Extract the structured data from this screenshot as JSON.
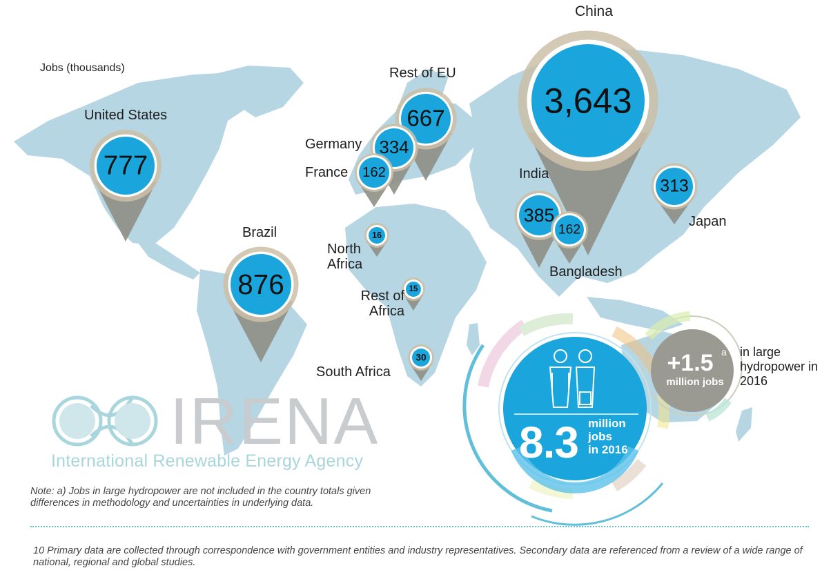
{
  "units_label": "Jobs (thousands)",
  "countries": [
    {
      "name": "China",
      "jobs": "3,643",
      "value": 3643
    },
    {
      "name": "Brazil",
      "jobs": "876",
      "value": 876
    },
    {
      "name": "United States",
      "jobs": "777",
      "value": 777
    },
    {
      "name": "Rest of EU",
      "jobs": "667",
      "value": 667
    },
    {
      "name": "India",
      "jobs": "385",
      "value": 385
    },
    {
      "name": "Germany",
      "jobs": "334",
      "value": 334
    },
    {
      "name": "Japan",
      "jobs": "313",
      "value": 313
    },
    {
      "name": "France",
      "jobs": "162",
      "value": 162
    },
    {
      "name": "Bangladesh",
      "jobs": "162",
      "value": 162
    },
    {
      "name": "South Africa",
      "jobs": "30",
      "value": 30
    },
    {
      "name": "North Africa",
      "jobs": "16",
      "value": 16
    },
    {
      "name": "Rest of Africa",
      "jobs": "15",
      "value": 15
    }
  ],
  "total": {
    "value": "8.3",
    "label": "million jobs in 2016",
    "line1": "million",
    "line2": "jobs",
    "line3": "in 2016"
  },
  "hydro": {
    "value": "+1.5",
    "superscript": "a",
    "unit": "million jobs",
    "side_text": "in large hydropower in 2016"
  },
  "logo": {
    "name": "IRENA",
    "subtitle": "International Renewable Energy Agency"
  },
  "note": "Note: a) Jobs in large hydropower are not included in the country totals given differences in methodology and uncertainties in underlying data.",
  "footnote": "10 Primary data are collected through correspondence with government entities and industry representatives. Secondary data are referenced from a review of a wide range of national, regional and global studies.",
  "colors": {
    "map": "#b7d6e4",
    "bubble": "#1aa5dd",
    "pin": "#8e8f84",
    "ring": "#cbbfa8"
  }
}
